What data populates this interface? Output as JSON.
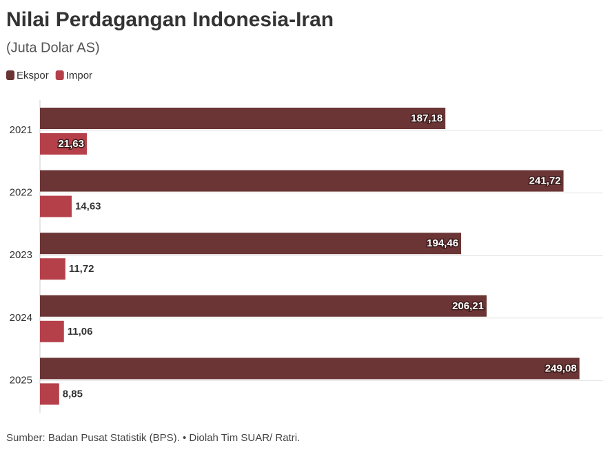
{
  "chart_data": {
    "type": "hbar",
    "title": "Nilai Perdagangan Indonesia-Iran",
    "subtitle": "(Juta Dolar AS)",
    "source": "Sumber: Badan Pusat Statistik (BPS). • Diolah Tim SUAR/ Ratri.",
    "categories": [
      "2021",
      "2022",
      "2023",
      "2024",
      "2025"
    ],
    "series": [
      {
        "name": "Ekspor",
        "color": "#6b3535",
        "values": [
          187.18,
          241.72,
          194.46,
          206.21,
          249.08
        ],
        "value_labels": [
          "187,18",
          "241,72",
          "194,46",
          "206,21",
          "249,08"
        ]
      },
      {
        "name": "Impor",
        "color": "#b5404a",
        "values": [
          21.63,
          14.63,
          11.72,
          11.06,
          8.85
        ],
        "value_labels": [
          "21,63",
          "14,63",
          "11,72",
          "11,06",
          "8,85"
        ]
      }
    ],
    "xlim": [
      0,
      260
    ],
    "grid": true,
    "legend": "top-left"
  }
}
